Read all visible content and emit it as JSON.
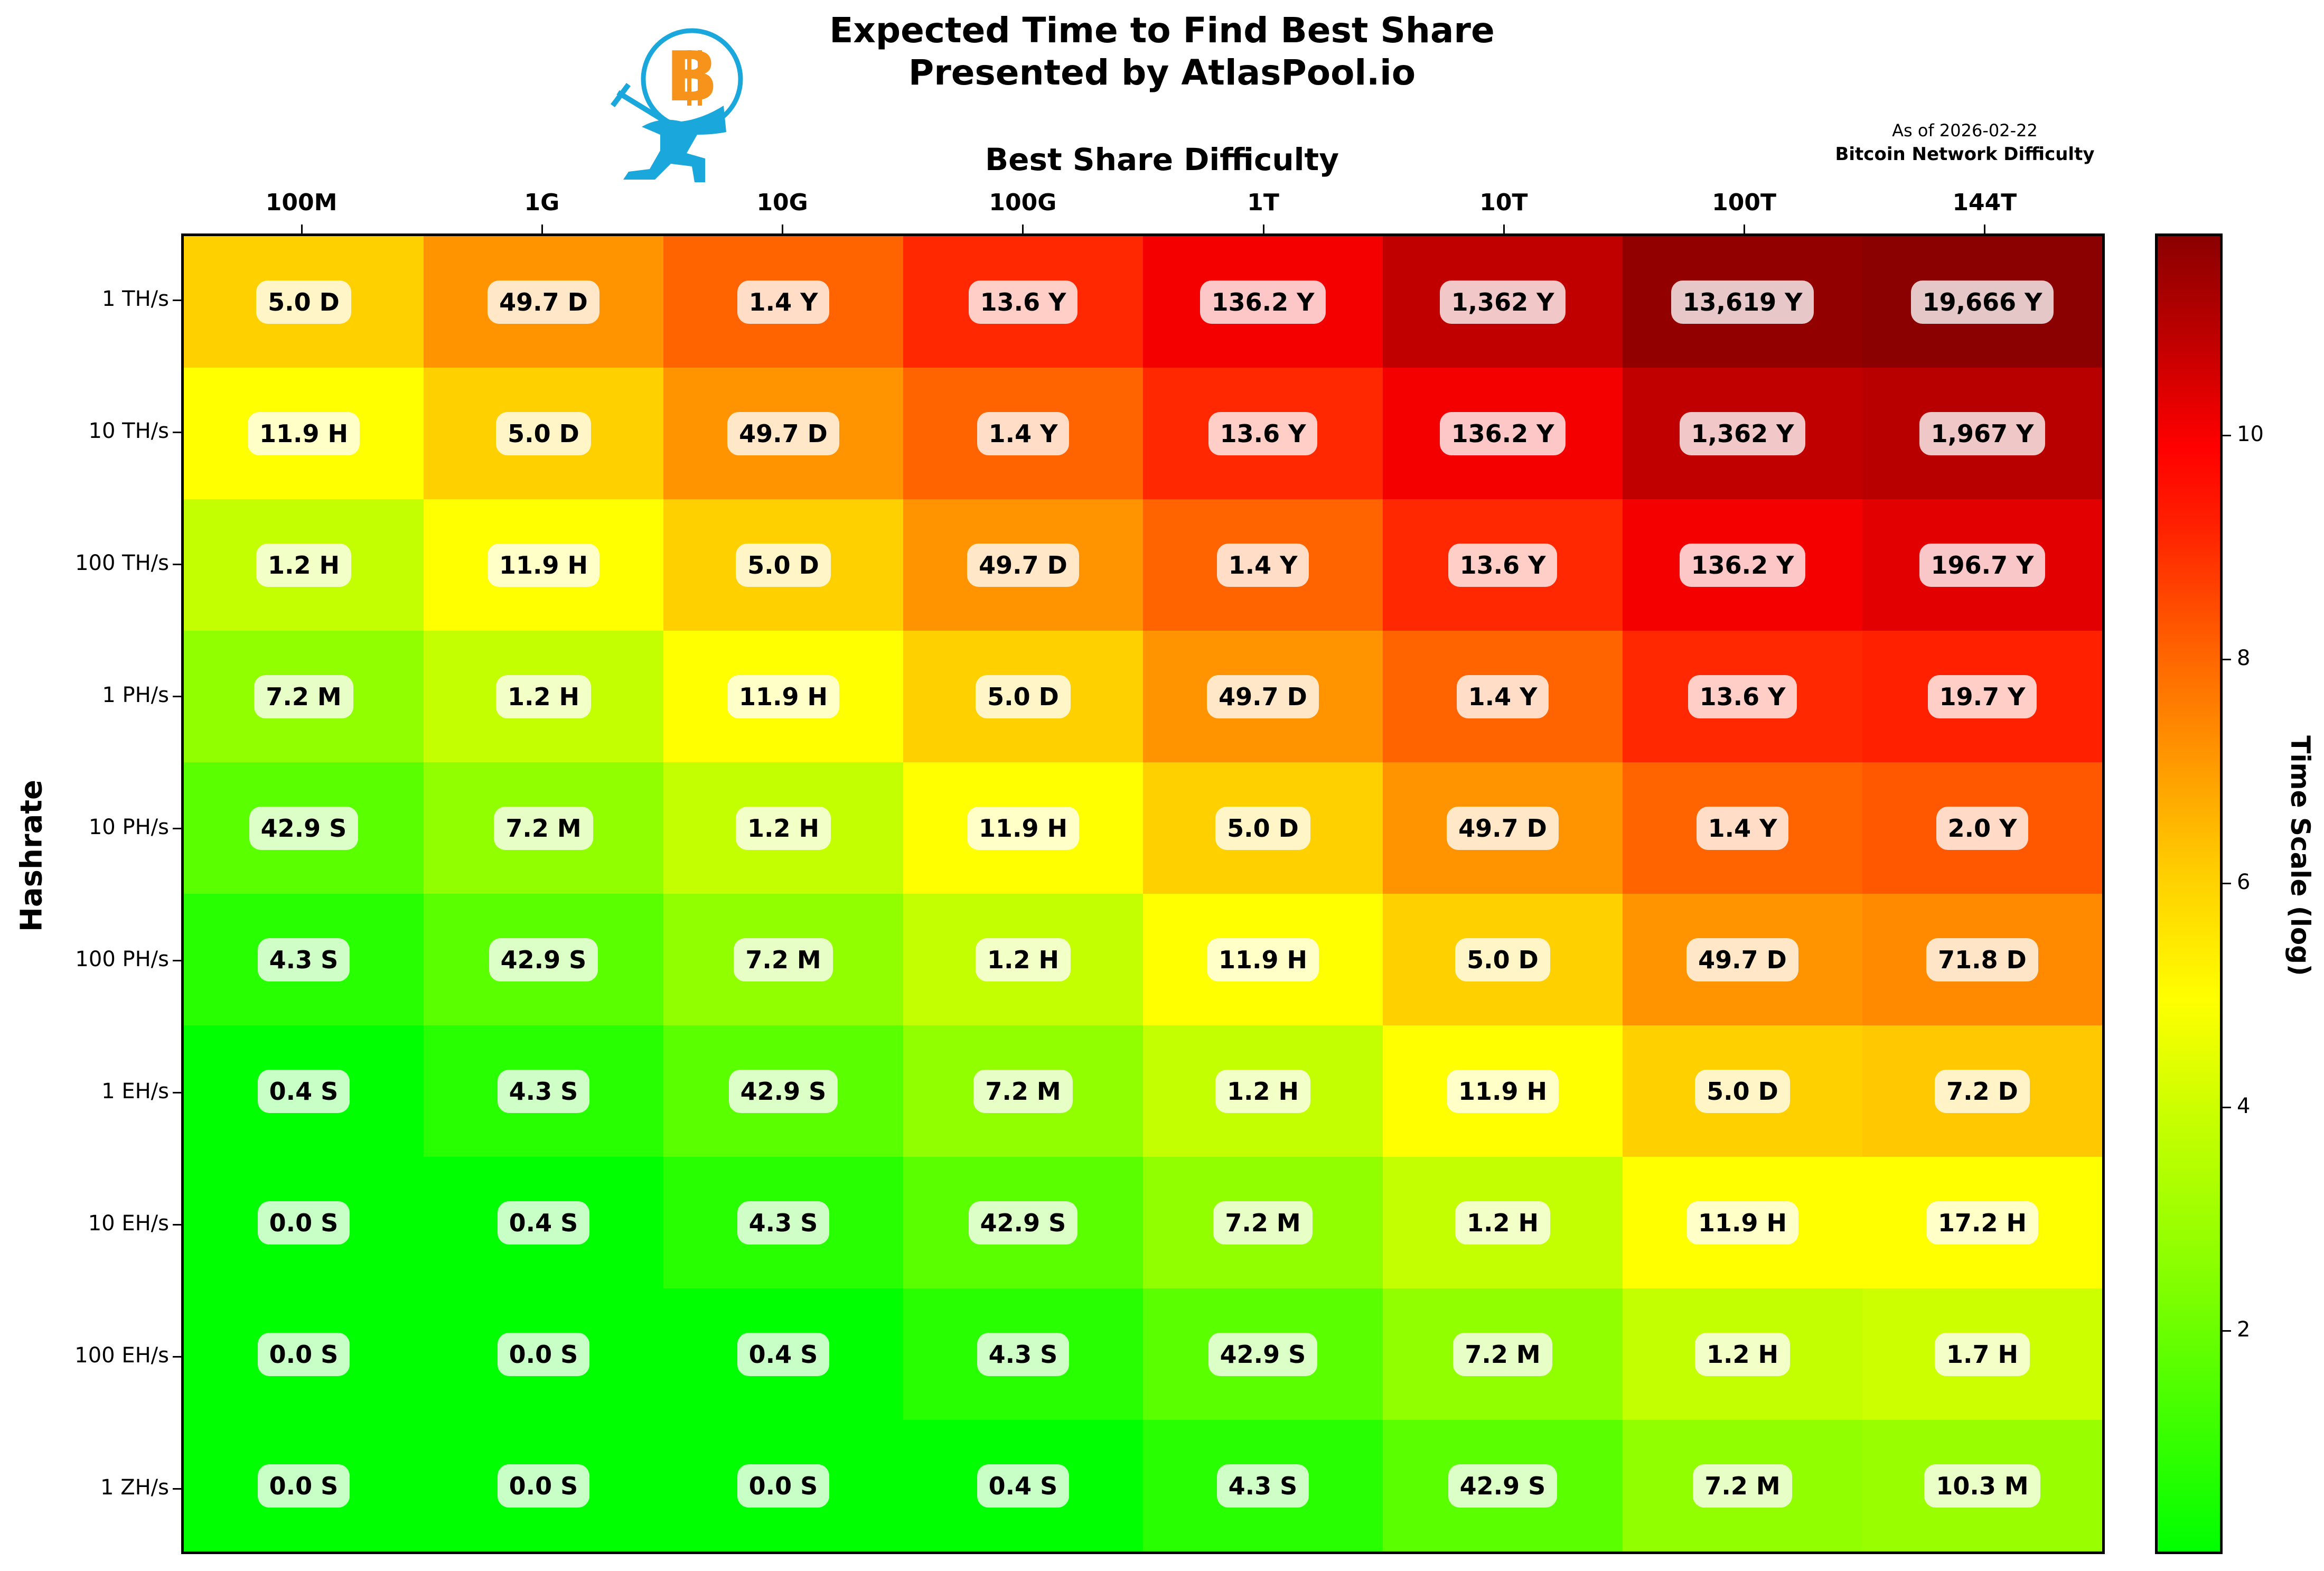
{
  "header": {
    "title_line1": "Expected Time to Find Best Share",
    "title_line2": "Presented by AtlasPool.io",
    "as_of": "As of 2026-02-22",
    "network_difficulty_label": "Bitcoin Network Difficulty",
    "logo": "atlaspool-bitcoin-atlas-logo"
  },
  "chart_data": {
    "type": "heatmap",
    "title": "Expected Time to Find Best Share — Presented by AtlasPool.io",
    "xlabel": "Best Share Difficulty",
    "ylabel": "Hashrate",
    "colorbar_label": "Time Scale (log)",
    "colorbar_ticks": [
      "2",
      "4",
      "6",
      "8",
      "10"
    ],
    "colorbar_range": [
      0,
      11.8
    ],
    "colormap": [
      "#00ff00",
      "#ffff00",
      "#ff0000",
      "#8b0000"
    ],
    "x": [
      "100M",
      "1G",
      "10G",
      "100G",
      "1T",
      "10T",
      "100T",
      "144T"
    ],
    "y": [
      "1 TH/s",
      "10 TH/s",
      "100 TH/s",
      "1 PH/s",
      "10 PH/s",
      "100 PH/s",
      "1 EH/s",
      "10 EH/s",
      "100 EH/s",
      "1 ZH/s"
    ],
    "values": [
      [
        "5.0 D",
        "49.7 D",
        "1.4 Y",
        "13.6 Y",
        "136.2 Y",
        "1,362 Y",
        "13,619 Y",
        "19,666 Y"
      ],
      [
        "11.9 H",
        "5.0 D",
        "49.7 D",
        "1.4 Y",
        "13.6 Y",
        "136.2 Y",
        "1,362 Y",
        "1,967 Y"
      ],
      [
        "1.2 H",
        "11.9 H",
        "5.0 D",
        "49.7 D",
        "1.4 Y",
        "13.6 Y",
        "136.2 Y",
        "196.7 Y"
      ],
      [
        "7.2 M",
        "1.2 H",
        "11.9 H",
        "5.0 D",
        "49.7 D",
        "1.4 Y",
        "13.6 Y",
        "19.7 Y"
      ],
      [
        "42.9 S",
        "7.2 M",
        "1.2 H",
        "11.9 H",
        "5.0 D",
        "49.7 D",
        "1.4 Y",
        "2.0 Y"
      ],
      [
        "4.3 S",
        "42.9 S",
        "7.2 M",
        "1.2 H",
        "11.9 H",
        "5.0 D",
        "49.7 D",
        "71.8 D"
      ],
      [
        "0.4 S",
        "4.3 S",
        "42.9 S",
        "7.2 M",
        "1.2 H",
        "11.9 H",
        "5.0 D",
        "7.2 D"
      ],
      [
        "0.0 S",
        "0.4 S",
        "4.3 S",
        "42.9 S",
        "7.2 M",
        "1.2 H",
        "11.9 H",
        "17.2 H"
      ],
      [
        "0.0 S",
        "0.0 S",
        "0.4 S",
        "4.3 S",
        "42.9 S",
        "7.2 M",
        "1.2 H",
        "1.7 H"
      ],
      [
        "0.0 S",
        "0.0 S",
        "0.0 S",
        "0.4 S",
        "4.3 S",
        "42.9 S",
        "7.2 M",
        "10.3 M"
      ]
    ],
    "colors": [
      [
        "#ffd000",
        "#ff9400",
        "#ff6400",
        "#ff2800",
        "#f50000",
        "#c00000",
        "#920000",
        "#8b0000"
      ],
      [
        "#ffff00",
        "#ffd000",
        "#ff9400",
        "#ff6400",
        "#ff2800",
        "#f50000",
        "#c00000",
        "#b80000"
      ],
      [
        "#c3ff00",
        "#ffff00",
        "#ffd000",
        "#ff9400",
        "#ff6400",
        "#ff2800",
        "#f50000",
        "#e30000"
      ],
      [
        "#91ff00",
        "#c3ff00",
        "#ffff00",
        "#ffd000",
        "#ff9400",
        "#ff6400",
        "#ff2800",
        "#ff2000"
      ],
      [
        "#5aff00",
        "#91ff00",
        "#c3ff00",
        "#ffff00",
        "#ffd000",
        "#ff9400",
        "#ff6400",
        "#ff5800"
      ],
      [
        "#28ff00",
        "#5aff00",
        "#91ff00",
        "#c3ff00",
        "#ffff00",
        "#ffd000",
        "#ff9400",
        "#ff8a00"
      ],
      [
        "#00ff00",
        "#28ff00",
        "#5aff00",
        "#91ff00",
        "#c3ff00",
        "#ffff00",
        "#ffd000",
        "#ffc800"
      ],
      [
        "#00ff00",
        "#00ff00",
        "#28ff00",
        "#5aff00",
        "#91ff00",
        "#c3ff00",
        "#ffff00",
        "#ffff00"
      ],
      [
        "#00ff00",
        "#00ff00",
        "#00ff00",
        "#28ff00",
        "#5aff00",
        "#91ff00",
        "#c3ff00",
        "#ccff00"
      ],
      [
        "#00ff00",
        "#00ff00",
        "#00ff00",
        "#00ff00",
        "#28ff00",
        "#5aff00",
        "#91ff00",
        "#99ff00"
      ]
    ],
    "grid": false,
    "legend": "colorbar-right"
  }
}
